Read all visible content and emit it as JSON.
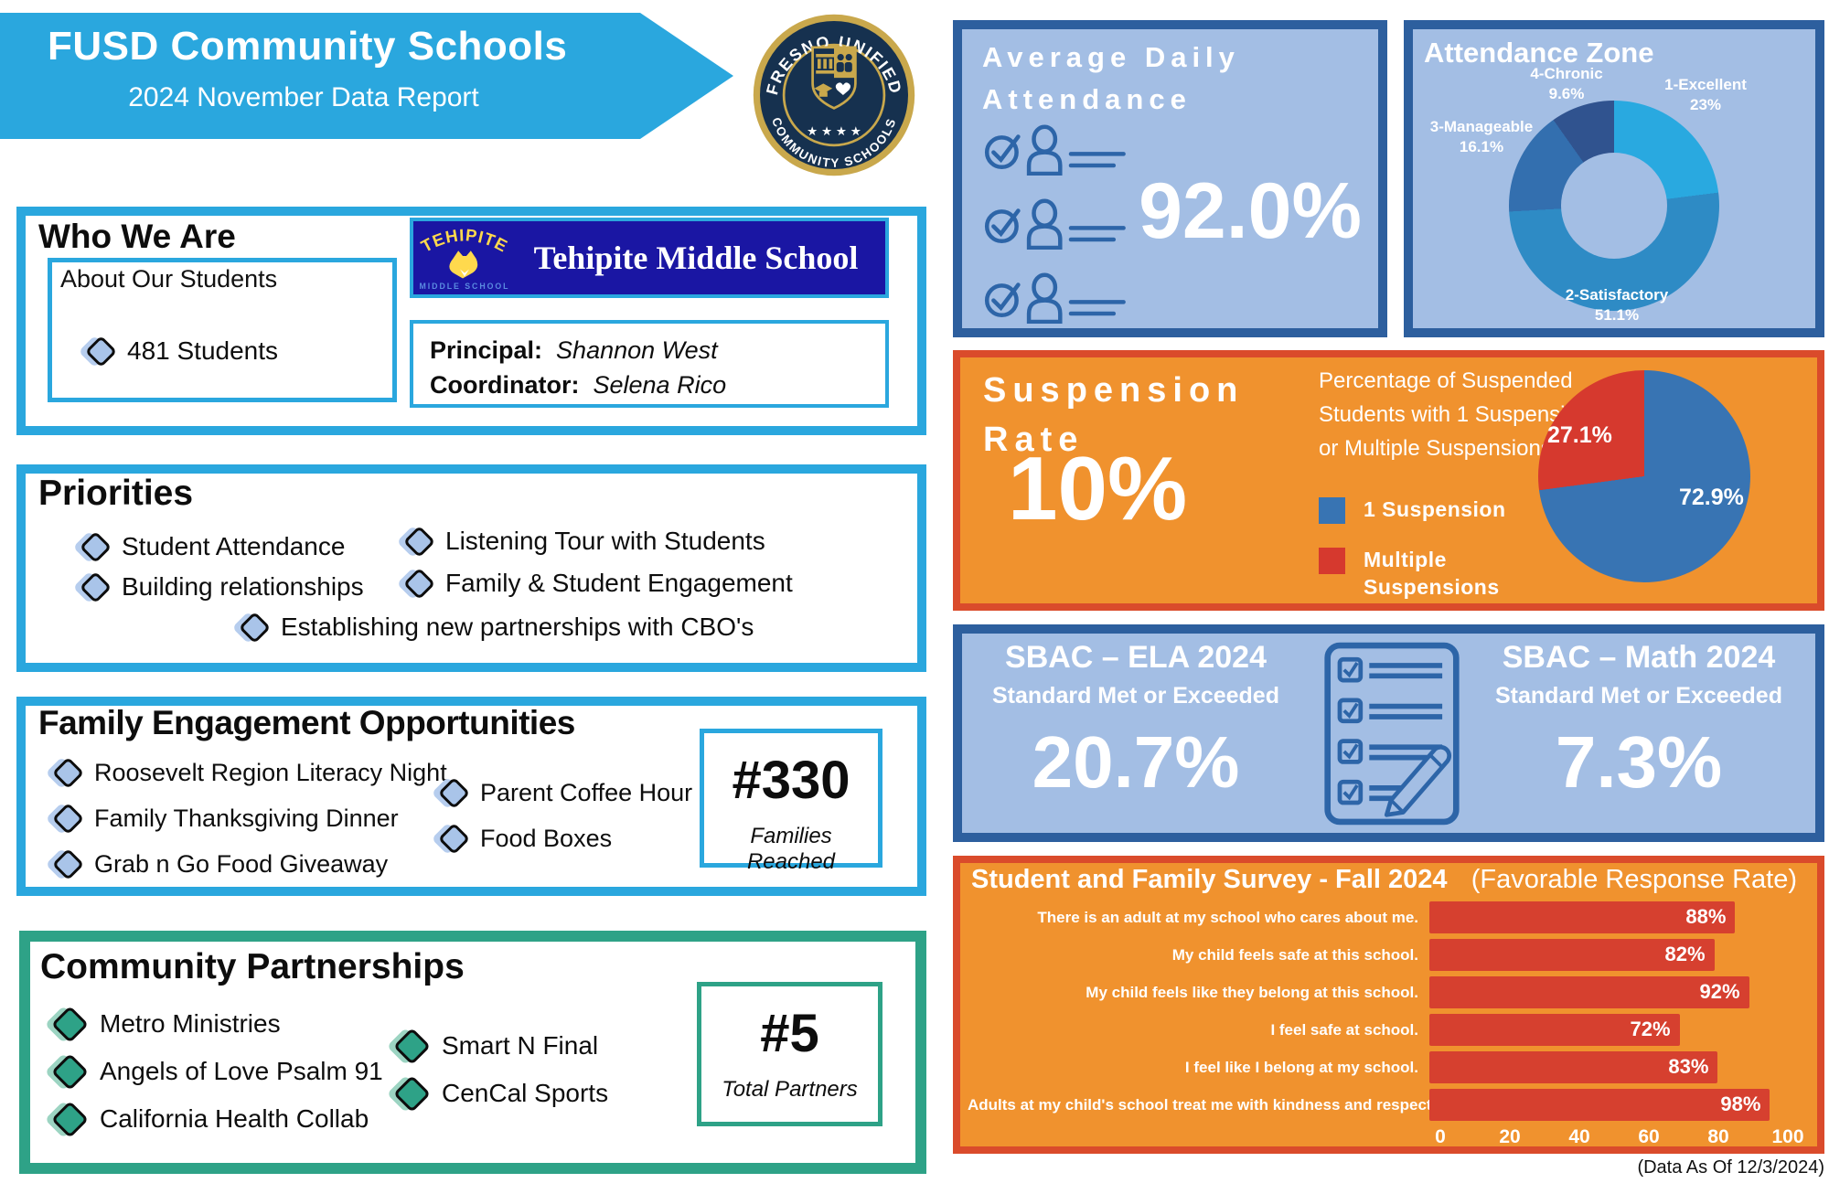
{
  "header": {
    "title": "FUSD Community Schools",
    "subtitle": "2024 November Data Report",
    "seal_top_text": "FRESNO UNIFIED",
    "seal_bottom_text": "COMMUNITY SCHOOLS",
    "seal_stars": "★ ★ ★ ★"
  },
  "who_we_are": {
    "title": "Who We Are",
    "about_title": "About Our Students",
    "students_stat": "481 Students",
    "school_banner": {
      "logo_arc": "TEHIPITE",
      "logo_sub": "MIDDLE SCHOOL",
      "name": "Tehipite Middle School"
    },
    "principal_label": "Principal:",
    "principal_name": "Shannon West",
    "coordinator_label": "Coordinator:",
    "coordinator_name": "Selena Rico"
  },
  "priorities": {
    "title": "Priorities",
    "col1": [
      "Student Attendance",
      "Building relationships"
    ],
    "col2": [
      "Listening Tour with Students",
      "Family & Student Engagement"
    ],
    "centered": "Establishing new partnerships with CBO's"
  },
  "family_engagement": {
    "title": "Family Engagement Opportunities",
    "col1": [
      "Roosevelt Region Literacy Night",
      "Family Thanksgiving Dinner",
      "Grab n Go Food Giveaway"
    ],
    "col2": [
      "Parent Coffee Hour",
      "Food Boxes"
    ],
    "stat_value": "#330",
    "stat_label": "Families Reached"
  },
  "community_partnerships": {
    "title": "Community Partnerships",
    "col1": [
      "Metro Ministries",
      "Angels of Love Psalm 91",
      "California Health Collab"
    ],
    "col2": [
      "Smart N Final",
      "CenCal Sports"
    ],
    "stat_value": "#5",
    "stat_label": "Total Partners"
  },
  "attendance": {
    "title_line1": "Average Daily",
    "title_line2": "Attendance",
    "value": "92.0%",
    "icon": "check-person-lines-icon"
  },
  "suspension": {
    "title_line1": "Suspension",
    "title_line2": "Rate",
    "value": "10%",
    "description": "Percentage of Suspended Students with 1 Suspension or Multiple Suspensions."
  },
  "sbac": {
    "ela_title": "SBAC – ELA 2024",
    "ela_subtitle": "Standard Met or Exceeded",
    "ela_value": "20.7%",
    "math_title": "SBAC – Math 2024",
    "math_subtitle": "Standard Met or Exceeded",
    "math_value": "7.3%",
    "icon": "checklist-pencil-icon"
  },
  "survey_header": {
    "title": "Student and Family Survey - Fall 2024",
    "subtitle": "(Favorable Response Rate)"
  },
  "footnote": "(Data As Of 12/3/2024)",
  "colors": {
    "cyan": "#2AA7DE",
    "navy_banner": "#1A16A3",
    "panel_fill": "#A3BEE4",
    "panel_border": "#2D5F9E",
    "orange_fill": "#F0922E",
    "orange_border": "#DA4B2B",
    "green": "#2EA287",
    "bar_red": "#D6402F",
    "pie_blue": "#3874B3",
    "diamond_blue": "#A9C4E9"
  },
  "chart_data": [
    {
      "id": "attendance_zone",
      "type": "pie",
      "title": "Attendance Zone",
      "donut": true,
      "segments": [
        {
          "label": "1-Excellent",
          "value": 23,
          "display": "23%",
          "color": "#29A9E0"
        },
        {
          "label": "2-Satisfactory",
          "value": 51.1,
          "display": "51.1%",
          "color": "#2E8BC5"
        },
        {
          "label": "3-Manageable",
          "value": 16.1,
          "display": "16.1%",
          "color": "#336FAF"
        },
        {
          "label": "4-Chronic",
          "value": 9.6,
          "display": "9.6%",
          "color": "#30538F"
        }
      ]
    },
    {
      "id": "suspensions",
      "type": "pie",
      "title": "Percentage of Suspended Students with 1 Suspension or Multiple Suspensions.",
      "donut": false,
      "segments": [
        {
          "label": "1 Suspension",
          "value": 72.9,
          "display": "72.9%",
          "color": "#3874B3"
        },
        {
          "label": "Multiple Suspensions",
          "value": 27.1,
          "display": "27.1%",
          "color": "#D6392E"
        }
      ]
    },
    {
      "id": "survey",
      "type": "bar",
      "title": "Student and Family Survey - Fall 2024",
      "subtitle": "(Favorable Response Rate)",
      "categories": [
        "There is an adult at my school who cares about me.",
        "My child feels safe at this school.",
        "My child feels like they belong at this school.",
        "I feel safe at school.",
        "I feel like I belong at my school.",
        "Adults at my child's school treat me with kindness and respect."
      ],
      "values": [
        88,
        82,
        92,
        72,
        83,
        98
      ],
      "bar_color": "#D6402F",
      "xlim": [
        0,
        100
      ],
      "ticks": [
        0,
        20,
        40,
        60,
        80,
        100
      ],
      "legend_position": "none",
      "grid": false
    }
  ]
}
